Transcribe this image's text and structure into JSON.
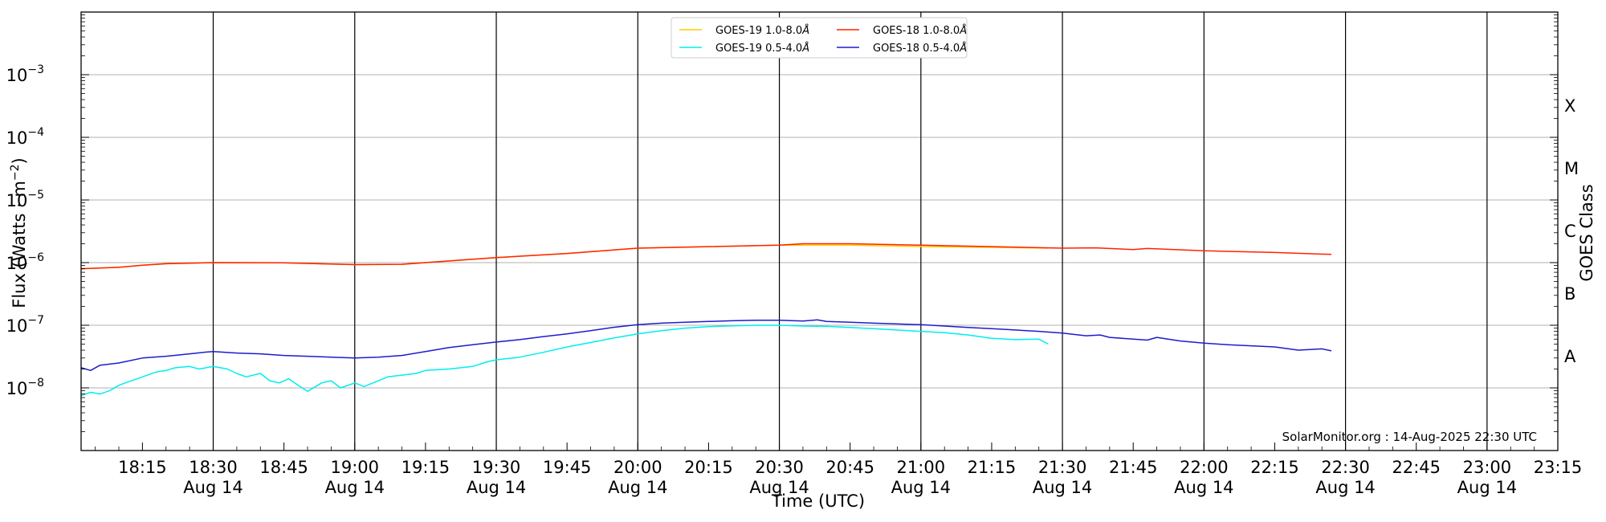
{
  "chart_data": {
    "type": "line",
    "xlabel": "Time (UTC)",
    "ylabel": "Flux (Watts · m",
    "ylabel_sup": "−2",
    "ylabel_close": ")",
    "right_label": "GOES Class",
    "yscale": "log",
    "ylim": [
      1e-09,
      0.01
    ],
    "yticks": [
      {
        "exp": -3,
        "text": "10",
        "sup": "−3"
      },
      {
        "exp": -4,
        "text": "10",
        "sup": "−4"
      },
      {
        "exp": -5,
        "text": "10",
        "sup": "−5"
      },
      {
        "exp": -6,
        "text": "10",
        "sup": "−6"
      },
      {
        "exp": -7,
        "text": "10",
        "sup": "−7"
      },
      {
        "exp": -8,
        "text": "10",
        "sup": "−8"
      }
    ],
    "goes_classes": [
      {
        "label": "X",
        "exp": -3.5
      },
      {
        "label": "M",
        "exp": -4.5
      },
      {
        "label": "C",
        "exp": -5.5
      },
      {
        "label": "B",
        "exp": -6.5
      },
      {
        "label": "A",
        "exp": -7.5
      }
    ],
    "xlim": [
      "18:02",
      "23:15"
    ],
    "xticks": [
      {
        "time": "18:15",
        "date": ""
      },
      {
        "time": "18:30",
        "date": "Aug 14"
      },
      {
        "time": "18:45",
        "date": ""
      },
      {
        "time": "19:00",
        "date": "Aug 14"
      },
      {
        "time": "19:15",
        "date": ""
      },
      {
        "time": "19:30",
        "date": "Aug 14"
      },
      {
        "time": "19:45",
        "date": ""
      },
      {
        "time": "20:00",
        "date": "Aug 14"
      },
      {
        "time": "20:15",
        "date": ""
      },
      {
        "time": "20:30",
        "date": "Aug 14"
      },
      {
        "time": "20:45",
        "date": ""
      },
      {
        "time": "21:00",
        "date": "Aug 14"
      },
      {
        "time": "21:15",
        "date": ""
      },
      {
        "time": "21:30",
        "date": "Aug 14"
      },
      {
        "time": "21:45",
        "date": ""
      },
      {
        "time": "22:00",
        "date": "Aug 14"
      },
      {
        "time": "22:15",
        "date": ""
      },
      {
        "time": "22:30",
        "date": "Aug 14"
      },
      {
        "time": "22:45",
        "date": ""
      },
      {
        "time": "23:00",
        "date": "Aug 14"
      },
      {
        "time": "23:15",
        "date": ""
      }
    ],
    "vlines": [
      "18:30",
      "19:00",
      "19:30",
      "20:00",
      "20:30",
      "21:00",
      "21:30",
      "22:00",
      "22:30",
      "23:00"
    ],
    "grid": "horizontal at decades, vertical at 30-minute marks",
    "legend_position": "top-center",
    "series": [
      {
        "name": "GOES-19 1.0-8.0",
        "color": "#ffcc00",
        "x": [
          "18:02",
          "18:10",
          "18:15",
          "18:20",
          "18:30",
          "18:45",
          "19:00",
          "19:10",
          "19:15",
          "19:30",
          "19:45",
          "20:00",
          "20:15",
          "20:30",
          "20:45",
          "21:00",
          "21:15",
          "21:27"
        ],
        "y": [
          8e-07,
          8.4e-07,
          9.1e-07,
          9.6e-07,
          1e-06,
          9.9e-07,
          9.3e-07,
          9.4e-07,
          1e-06,
          1.2e-06,
          1.4e-06,
          1.7e-06,
          1.8e-06,
          1.9e-06,
          1.9e-06,
          1.8e-06,
          1.75e-06,
          1.7e-06
        ]
      },
      {
        "name": "GOES-18 1.0-8.0",
        "color": "#ff2200",
        "x": [
          "18:02",
          "18:10",
          "18:15",
          "18:20",
          "18:30",
          "18:45",
          "19:00",
          "19:10",
          "19:15",
          "19:30",
          "19:45",
          "20:00",
          "20:15",
          "20:30",
          "20:35",
          "20:45",
          "21:00",
          "21:15",
          "21:30",
          "21:37",
          "21:45",
          "21:48",
          "22:00",
          "22:15",
          "22:27"
        ],
        "y": [
          8e-07,
          8.4e-07,
          9.1e-07,
          9.6e-07,
          1e-06,
          9.9e-07,
          9.3e-07,
          9.4e-07,
          1e-06,
          1.2e-06,
          1.4e-06,
          1.7e-06,
          1.8e-06,
          1.9e-06,
          2e-06,
          2e-06,
          1.9e-06,
          1.8e-06,
          1.7e-06,
          1.72e-06,
          1.62e-06,
          1.68e-06,
          1.55e-06,
          1.45e-06,
          1.35e-06
        ]
      },
      {
        "name": "GOES-19 0.5-4.0",
        "color": "#00eeee",
        "x": [
          "18:02",
          "18:04",
          "18:06",
          "18:08",
          "18:10",
          "18:12",
          "18:15",
          "18:18",
          "18:20",
          "18:22",
          "18:25",
          "18:27",
          "18:30",
          "18:33",
          "18:35",
          "18:37",
          "18:40",
          "18:42",
          "18:44",
          "18:46",
          "18:48",
          "18:50",
          "18:53",
          "18:55",
          "18:57",
          "19:00",
          "19:02",
          "19:05",
          "19:07",
          "19:10",
          "19:13",
          "19:15",
          "19:20",
          "19:25",
          "19:28",
          "19:30",
          "19:35",
          "19:40",
          "19:45",
          "19:50",
          "19:55",
          "20:00",
          "20:05",
          "20:10",
          "20:15",
          "20:20",
          "20:25",
          "20:30",
          "20:35",
          "20:40",
          "20:45",
          "20:50",
          "21:00",
          "21:05",
          "21:10",
          "21:15",
          "21:20",
          "21:25",
          "21:27"
        ],
        "y": [
          7.5e-09,
          8.5e-09,
          8e-09,
          9e-09,
          1.1e-08,
          1.25e-08,
          1.5e-08,
          1.8e-08,
          1.9e-08,
          2.1e-08,
          2.2e-08,
          2e-08,
          2.2e-08,
          2e-08,
          1.7e-08,
          1.5e-08,
          1.7e-08,
          1.3e-08,
          1.2e-08,
          1.4e-08,
          1.1e-08,
          8.8e-09,
          1.2e-08,
          1.3e-08,
          1e-08,
          1.2e-08,
          1.05e-08,
          1.3e-08,
          1.5e-08,
          1.6e-08,
          1.7e-08,
          1.9e-08,
          2e-08,
          2.2e-08,
          2.6e-08,
          2.8e-08,
          3.1e-08,
          3.7e-08,
          4.5e-08,
          5.3e-08,
          6.3e-08,
          7.3e-08,
          8.2e-08,
          9e-08,
          9.5e-08,
          9.8e-08,
          1e-07,
          1e-07,
          9.7e-08,
          9.6e-08,
          9.2e-08,
          8.8e-08,
          8e-08,
          7.6e-08,
          7e-08,
          6.2e-08,
          5.9e-08,
          6e-08,
          5e-08
        ]
      },
      {
        "name": "GOES-18 0.5-4.0",
        "color": "#1c1ccf",
        "x": [
          "18:02",
          "18:04",
          "18:06",
          "18:10",
          "18:15",
          "18:20",
          "18:25",
          "18:28",
          "18:30",
          "18:35",
          "18:40",
          "18:45",
          "18:50",
          "18:55",
          "19:00",
          "19:05",
          "19:10",
          "19:15",
          "19:20",
          "19:25",
          "19:30",
          "19:35",
          "19:40",
          "19:45",
          "19:50",
          "19:55",
          "20:00",
          "20:05",
          "20:10",
          "20:15",
          "20:20",
          "20:25",
          "20:30",
          "20:35",
          "20:38",
          "20:40",
          "20:45",
          "20:50",
          "21:00",
          "21:05",
          "21:10",
          "21:15",
          "21:20",
          "21:25",
          "21:30",
          "21:35",
          "21:38",
          "21:40",
          "21:45",
          "21:48",
          "21:50",
          "21:55",
          "22:00",
          "22:05",
          "22:10",
          "22:15",
          "22:20",
          "22:25",
          "22:27"
        ],
        "y": [
          2.1e-08,
          1.9e-08,
          2.3e-08,
          2.5e-08,
          3e-08,
          3.2e-08,
          3.5e-08,
          3.7e-08,
          3.8e-08,
          3.6e-08,
          3.5e-08,
          3.3e-08,
          3.2e-08,
          3.1e-08,
          3e-08,
          3.1e-08,
          3.3e-08,
          3.8e-08,
          4.4e-08,
          4.9e-08,
          5.4e-08,
          5.9e-08,
          6.6e-08,
          7.3e-08,
          8.2e-08,
          9.3e-08,
          1.02e-07,
          1.08e-07,
          1.12e-07,
          1.15e-07,
          1.18e-07,
          1.2e-07,
          1.2e-07,
          1.17e-07,
          1.22e-07,
          1.15e-07,
          1.12e-07,
          1.08e-07,
          1.02e-07,
          9.7e-08,
          9.2e-08,
          8.8e-08,
          8.4e-08,
          8e-08,
          7.5e-08,
          6.8e-08,
          7e-08,
          6.4e-08,
          6e-08,
          5.8e-08,
          6.4e-08,
          5.6e-08,
          5.2e-08,
          4.9e-08,
          4.7e-08,
          4.5e-08,
          4e-08,
          4.2e-08,
          3.9e-08
        ]
      }
    ],
    "legend_unit": "Å",
    "footer": "SolarMonitor.org : 14-Aug-2025 22:30 UTC"
  }
}
